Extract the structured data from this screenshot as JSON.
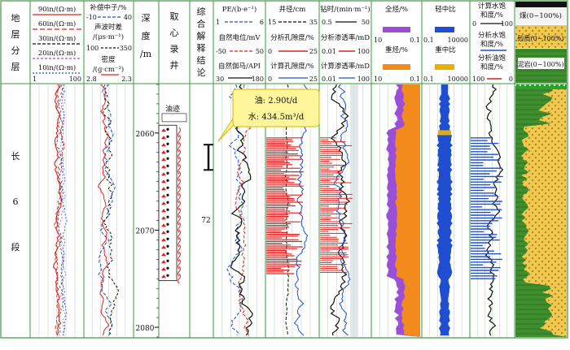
{
  "headers": {
    "col0": [
      "地",
      "层",
      "分",
      "层"
    ],
    "col1": [
      "90in/(Ω·m)",
      "60in/(Ω·m)",
      "30in/(Ω·m)",
      "20in/(Ω·m)",
      "10in/(Ω·m)"
    ],
    "col1_scale": [
      "1",
      "100"
    ],
    "col2": {
      "neutron": "补偿中子/%",
      "neutron_scale": [
        "-10",
        "40"
      ],
      "acoustic": "声波时差",
      "acoustic_unit": "/(μs·m⁻¹)",
      "acoustic_scale": [
        "100",
        "350"
      ],
      "density": "密度",
      "density_unit": "/(g·cm⁻³)",
      "density_scale": [
        "2.8",
        "2.3"
      ]
    },
    "col3": [
      "深",
      "度",
      "/m"
    ],
    "col4": [
      "取",
      "心",
      "录",
      "井"
    ],
    "col5": [
      "综",
      "合",
      "解",
      "释",
      "结",
      "论"
    ],
    "col6": {
      "pe": "PE/(b·e⁻¹)",
      "pe_scale": [
        "1",
        "6"
      ],
      "sp": "自然电位/mV",
      "sp_scale": [
        "-50",
        "50"
      ],
      "gr": "自然伽马/API",
      "gr_scale": [
        "30",
        "180"
      ]
    },
    "col7": {
      "cal": "井径/cm",
      "cal_scale": [
        "15",
        "35"
      ],
      "ap": "分析孔隙度/%",
      "ap_scale": [
        "0",
        "25"
      ],
      "cp": "计算孔隙度/%",
      "cp_scale": [
        "0",
        "25"
      ]
    },
    "col8": {
      "rop": "钻时/(min·m⁻¹)",
      "rop_scale": [
        "0.5",
        "50"
      ],
      "ak": "分析渗透率/mD",
      "ak_scale": [
        "0.01",
        "100"
      ],
      "ck": "计算渗透率/mD",
      "ck_scale": [
        "0.01",
        "100"
      ]
    },
    "col9": {
      "tg": "全烃/%",
      "tg_scale": [
        "10",
        "0.1"
      ],
      "hc": "重烃/%",
      "hc_scale": [
        "10",
        "0.1"
      ]
    },
    "col10": {
      "light": "轻中比",
      "light_scale": [
        "0.1",
        "10000"
      ],
      "heavy": "重中比",
      "heavy_scale": [
        "0.1",
        "10000"
      ]
    },
    "col11": {
      "sw": "计算水饱和度/%",
      "sw_scale": [
        "0",
        "100"
      ],
      "asw": "分析水饱和度/%",
      "aso": "分析油饱和度/%",
      "aso_scale": [
        "100",
        "0"
      ]
    },
    "col12": [
      "煤(0~100%)",
      "砂质(0~100%)",
      "泥岩(0~100%)"
    ]
  },
  "strat": [
    "长",
    "6",
    "段"
  ],
  "depth_ticks": [
    "2060",
    "2070",
    "2080"
  ],
  "core_label": "油迹",
  "interp_number": "72",
  "callout": {
    "oil": "油: 2.90t/d",
    "water": "水: 434.5m³/d"
  },
  "colors": {
    "grid_green": "#3a9a3a",
    "red": "#e02020",
    "blue": "#1f4fd0",
    "purple": "#9b4fd8",
    "orange": "#f28a1c",
    "yellow": "#fff59a",
    "sand": "#f0c850",
    "mud": "#3e8e2e"
  },
  "chart_data": {
    "type": "well-log",
    "depth_range": [
      2055,
      2081
    ],
    "depth_unit": "m",
    "tracks": [
      {
        "name": "resistivity",
        "curves": [
          "90in",
          "60in",
          "30in",
          "20in",
          "10in"
        ],
        "scale": [
          1,
          100
        ],
        "log": true
      },
      {
        "name": "porosity",
        "curves": [
          "补偿中子",
          "声波时差",
          "密度"
        ]
      },
      {
        "name": "lithology-log",
        "curves": [
          "PE",
          "自然电位",
          "自然伽马"
        ]
      },
      {
        "name": "porosity-analysis",
        "curves": [
          "井径",
          "分析孔隙度",
          "计算孔隙度"
        ]
      },
      {
        "name": "permeability",
        "curves": [
          "钻时",
          "分析渗透率",
          "计算渗透率"
        ]
      },
      {
        "name": "gas",
        "curves": [
          "全烃",
          "重烃"
        ]
      },
      {
        "name": "ratio",
        "curves": [
          "轻中比",
          "重中比"
        ]
      },
      {
        "name": "saturation",
        "curves": [
          "计算水饱和度",
          "分析水饱和度",
          "分析油饱和度"
        ]
      },
      {
        "name": "lithology",
        "curves": [
          "煤",
          "砂质",
          "泥岩"
        ]
      }
    ],
    "test_result": {
      "oil_t_per_d": 2.9,
      "water_m3_per_d": 434.5
    }
  }
}
